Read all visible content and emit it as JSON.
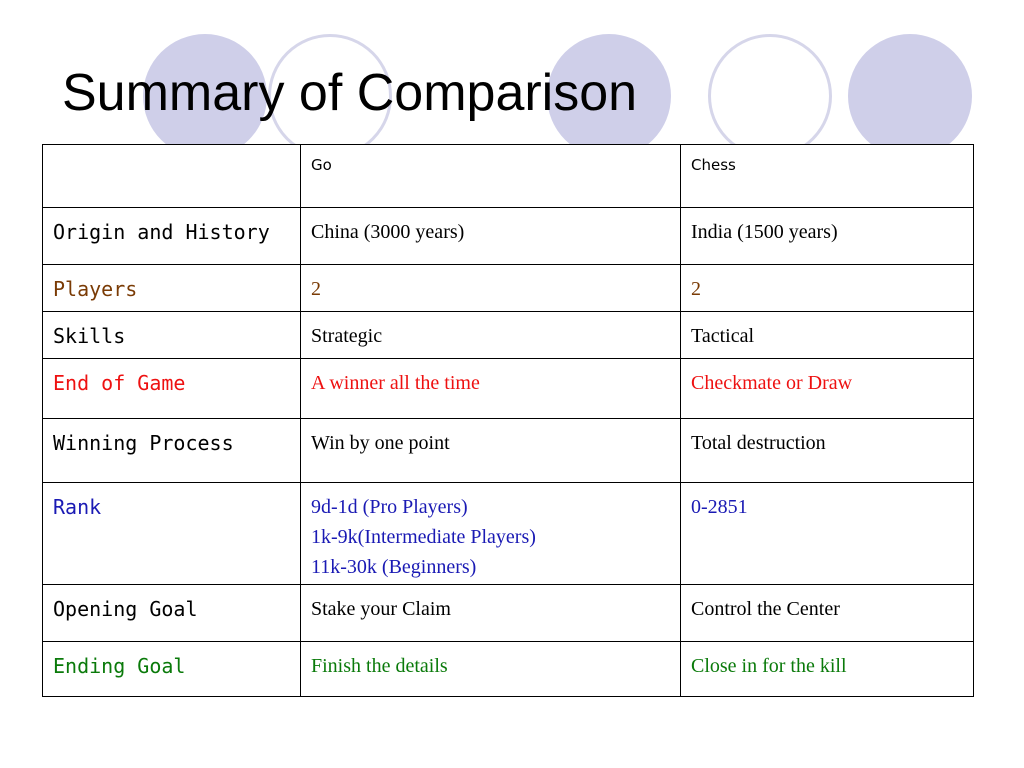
{
  "slide": {
    "title": "Summary of Comparison"
  },
  "table": {
    "headers": [
      "",
      "Go",
      "Chess"
    ],
    "rows": [
      {
        "label": "Origin and History",
        "go": [
          "China (3000 years)"
        ],
        "chess": [
          "India (1500 years)"
        ],
        "color": "#000000"
      },
      {
        "label": "Players",
        "go": [
          "2"
        ],
        "chess": [
          "2"
        ],
        "color": "#7a3b05"
      },
      {
        "label": "Skills",
        "go": [
          "Strategic"
        ],
        "chess": [
          "Tactical"
        ],
        "color": "#000000"
      },
      {
        "label": "End of Game",
        "go": [
          "A winner all the time"
        ],
        "chess": [
          "Checkmate or Draw"
        ],
        "color": "#ee1111"
      },
      {
        "label": "Winning Process",
        "go": [
          "Win by one point"
        ],
        "chess": [
          "Total destruction"
        ],
        "color": "#000000"
      },
      {
        "label": "Rank",
        "go": [
          "9d-1d (Pro Players)",
          "1k-9k(Intermediate Players)",
          "11k-30k (Beginners)"
        ],
        "chess": [
          "0-2851"
        ],
        "color": "#1a1ab4"
      },
      {
        "label": "Opening Goal",
        "go": [
          "Stake your Claim"
        ],
        "chess": [
          "Control the Center"
        ],
        "color": "#000000"
      },
      {
        "label": "Ending Goal",
        "go": [
          "Finish the details"
        ],
        "chess": [
          "Close in for the kill"
        ],
        "color": "#0a7a0a"
      }
    ]
  },
  "colors": {
    "decor_filled": "#cfcfe9",
    "decor_ring": "#d6d6ea"
  }
}
